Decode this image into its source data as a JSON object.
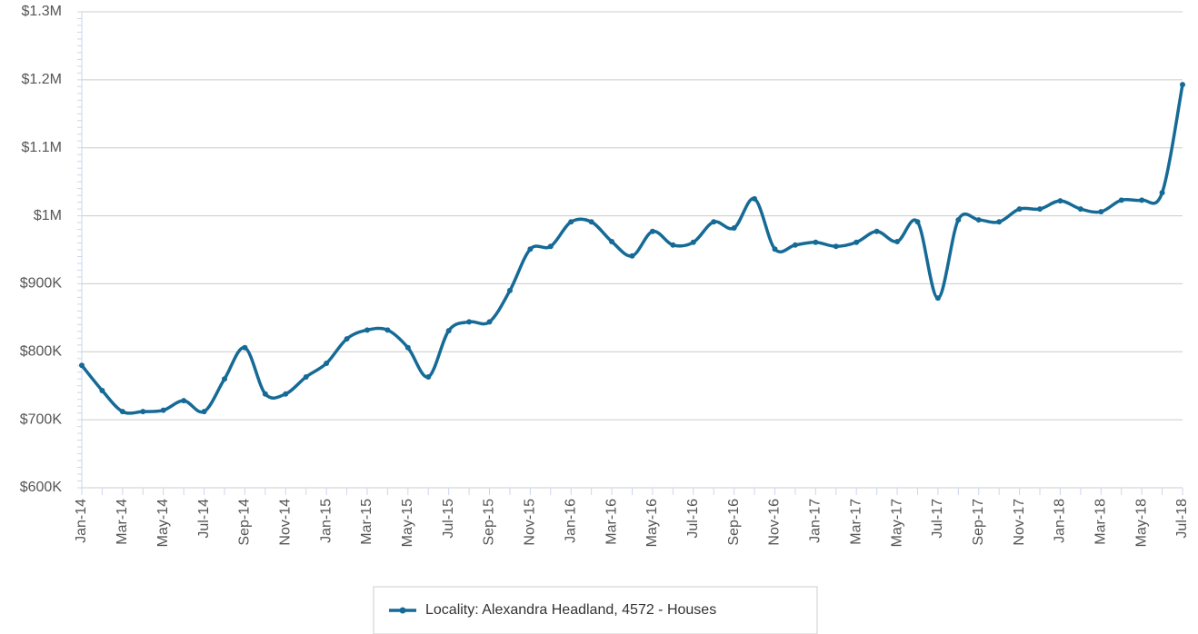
{
  "chart_data": {
    "type": "line",
    "categories": [
      "Jan-14",
      null,
      "Mar-14",
      null,
      "May-14",
      null,
      "Jul-14",
      null,
      "Sep-14",
      null,
      "Nov-14",
      null,
      "Jan-15",
      null,
      "Mar-15",
      null,
      "May-15",
      null,
      "Jul-15",
      null,
      "Sep-15",
      null,
      "Nov-15",
      null,
      "Jan-16",
      null,
      "Mar-16",
      null,
      "May-16",
      null,
      "Jul-16",
      null,
      "Sep-16",
      null,
      "Nov-16",
      null,
      "Jan-17",
      null,
      "Mar-17",
      null,
      "May-17",
      null,
      "Jul-17",
      null,
      "Sep-17",
      null,
      "Nov-17",
      null,
      "Jan-18",
      null,
      "Mar-18",
      null,
      "May-18",
      null,
      "Jul-18"
    ],
    "series": [
      {
        "name": "Locality: Alexandra Headland, 4572 - Houses",
        "color": "#156a96",
        "values": [
          780000,
          743000,
          712000,
          712000,
          714000,
          728000,
          712000,
          760000,
          806000,
          738000,
          738000,
          763000,
          783000,
          819000,
          832000,
          832000,
          806000,
          763000,
          831000,
          844000,
          844000,
          890000,
          951000,
          955000,
          991000,
          991000,
          962000,
          941000,
          977000,
          957000,
          961000,
          991000,
          982000,
          1025000,
          951000,
          957000,
          961000,
          955000,
          961000,
          977000,
          962000,
          991000,
          879000,
          994000,
          994000,
          991000,
          1010000,
          1010000,
          1022000,
          1010000,
          1006000,
          1023000,
          1023000,
          1034000,
          1193000
        ]
      }
    ],
    "ylim": [
      600000,
      1300000
    ],
    "yticks": [
      {
        "value": 600000,
        "label": "$600K"
      },
      {
        "value": 700000,
        "label": "$700K"
      },
      {
        "value": 800000,
        "label": "$800K"
      },
      {
        "value": 900000,
        "label": "$900K"
      },
      {
        "value": 1000000,
        "label": "$1M"
      },
      {
        "value": 1100000,
        "label": "$1.1M"
      },
      {
        "value": 1200000,
        "label": "$1.2M"
      },
      {
        "value": 1300000,
        "label": "$1.3M"
      }
    ],
    "grid": true
  }
}
